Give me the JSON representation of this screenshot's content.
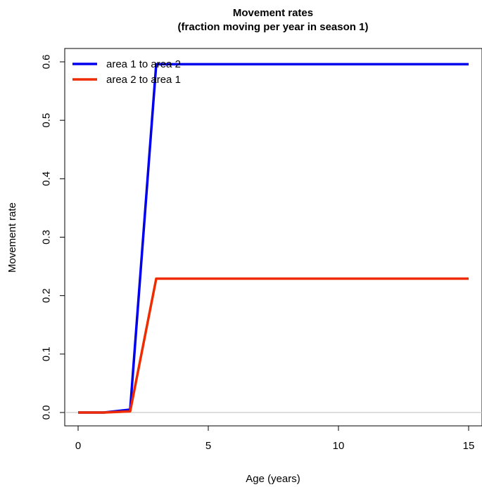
{
  "chart_data": {
    "type": "line",
    "title": "Movement rates",
    "subtitle": "(fraction moving per year in season 1)",
    "xlabel": "Age (years)",
    "ylabel": "Movement rate",
    "xlim": [
      0,
      15
    ],
    "ylim": [
      0,
      0.6
    ],
    "xticks": [
      0,
      5,
      10,
      15
    ],
    "yticks": [
      0.0,
      0.1,
      0.2,
      0.3,
      0.4,
      0.5,
      0.6
    ],
    "xtick_labels": [
      "0",
      "5",
      "10",
      "15"
    ],
    "ytick_labels": [
      "0.0",
      "0.1",
      "0.2",
      "0.3",
      "0.4",
      "0.5",
      "0.6"
    ],
    "grid": false,
    "legend_position": "top-left",
    "reference_line": {
      "y": 0,
      "color": "#bebebe"
    },
    "series": [
      {
        "name": "area 1 to area 2",
        "color": "#0000ee",
        "x": [
          0,
          1,
          2,
          3,
          4,
          5,
          6,
          7,
          8,
          9,
          10,
          11,
          12,
          13,
          14,
          15
        ],
        "y": [
          0.0,
          0.0,
          0.005,
          0.596,
          0.596,
          0.596,
          0.596,
          0.596,
          0.596,
          0.596,
          0.596,
          0.596,
          0.596,
          0.596,
          0.596,
          0.596
        ]
      },
      {
        "name": "area 2 to area 1",
        "color": "#ee2c00",
        "x": [
          0,
          1,
          2,
          3,
          4,
          5,
          6,
          7,
          8,
          9,
          10,
          11,
          12,
          13,
          14,
          15
        ],
        "y": [
          0.0,
          0.0,
          0.002,
          0.229,
          0.229,
          0.229,
          0.229,
          0.229,
          0.229,
          0.229,
          0.229,
          0.229,
          0.229,
          0.229,
          0.229,
          0.229
        ]
      }
    ]
  }
}
